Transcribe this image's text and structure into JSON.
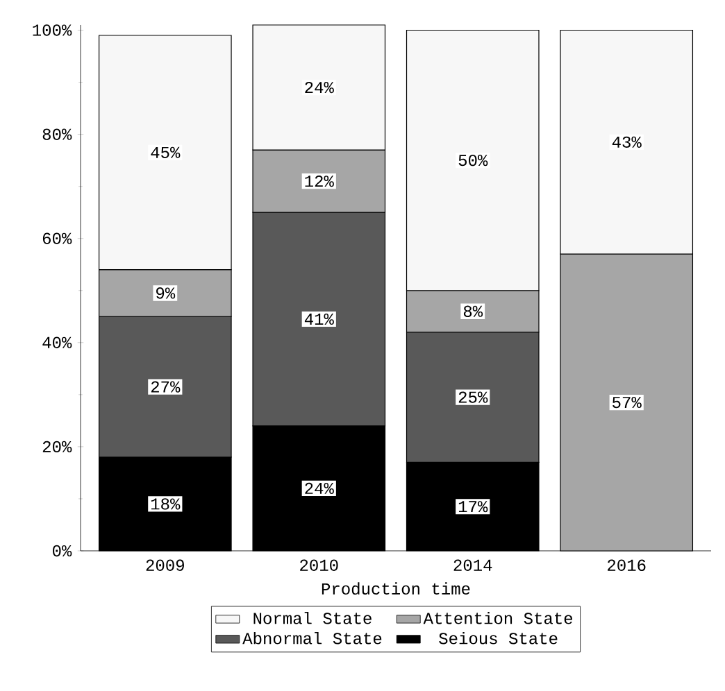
{
  "chart_data": {
    "type": "bar",
    "stacked": true,
    "xlabel": "Production time",
    "categories": [
      "2009",
      "2010",
      "2014",
      "2016"
    ],
    "ylim": [
      0,
      101
    ],
    "yticks": [
      {
        "value": 0,
        "label": "0%"
      },
      {
        "value": 20,
        "label": "20%"
      },
      {
        "value": 40,
        "label": "40%"
      },
      {
        "value": 60,
        "label": "60%"
      },
      {
        "value": 80,
        "label": "80%"
      },
      {
        "value": 100,
        "label": "100%"
      }
    ],
    "legend": "bottom",
    "grid": false,
    "series": [
      {
        "name": "Seious State",
        "color": "#000000",
        "values": [
          18,
          24,
          17,
          null
        ],
        "value_labels": [
          "18%",
          "24%",
          "17%",
          null
        ]
      },
      {
        "name": "Abnormal State",
        "color": "#595959",
        "values": [
          27,
          41,
          25,
          null
        ],
        "value_labels": [
          "27%",
          "41%",
          "25%",
          null
        ]
      },
      {
        "name": "Attention State",
        "color": "#a6a6a6",
        "values": [
          9,
          12,
          8,
          57
        ],
        "value_labels": [
          "9%",
          "12%",
          "8%",
          "57%"
        ]
      },
      {
        "name": "Normal State",
        "color": "#f7f7f7",
        "values": [
          45,
          24,
          50,
          43
        ],
        "value_labels": [
          "45%",
          "24%",
          "50%",
          "43%"
        ]
      }
    ]
  }
}
